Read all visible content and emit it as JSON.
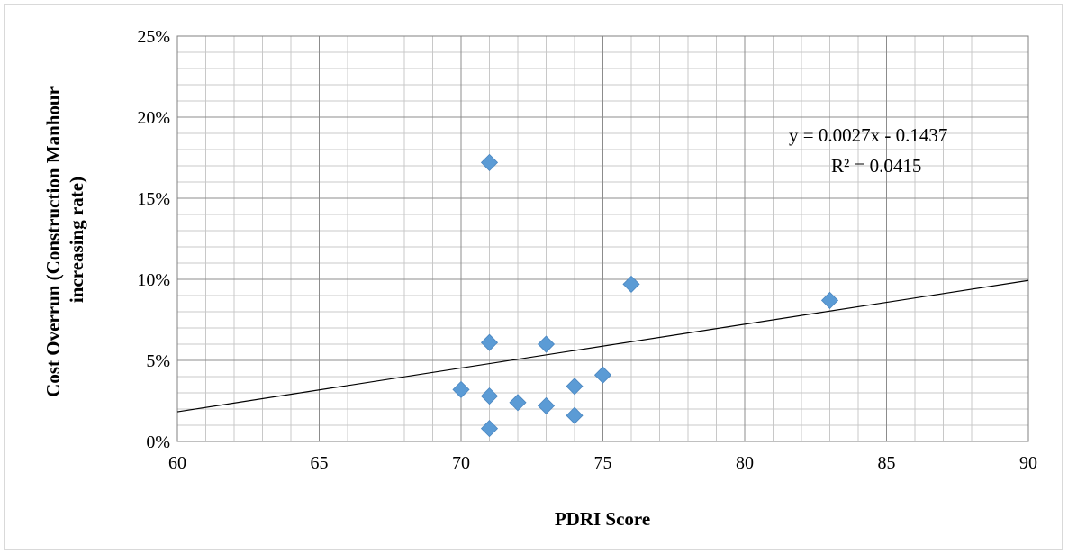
{
  "chart_data": {
    "type": "scatter",
    "title": "",
    "xlabel": "PDRI Score",
    "ylabel_lines": [
      "Cost Overrun (Construction Manhour",
      "increasing rate)"
    ],
    "xlim": [
      60,
      90
    ],
    "ylim": [
      0,
      0.25
    ],
    "x_ticks": [
      60,
      65,
      70,
      75,
      80,
      85,
      90
    ],
    "x_tick_labels": [
      "60",
      "65",
      "70",
      "75",
      "80",
      "85",
      "90"
    ],
    "y_ticks": [
      0,
      0.05,
      0.1,
      0.15,
      0.2,
      0.25
    ],
    "y_tick_labels": [
      "0%",
      "5%",
      "10%",
      "15%",
      "20%",
      "25%"
    ],
    "grid": true,
    "legend": "none",
    "marker": "diamond",
    "marker_color": "#5b9bd5",
    "series": [
      {
        "points": [
          {
            "x": 70,
            "y": 0.032
          },
          {
            "x": 71,
            "y": 0.172
          },
          {
            "x": 71,
            "y": 0.061
          },
          {
            "x": 71,
            "y": 0.028
          },
          {
            "x": 71,
            "y": 0.008
          },
          {
            "x": 72,
            "y": 0.024
          },
          {
            "x": 73,
            "y": 0.06
          },
          {
            "x": 73,
            "y": 0.022
          },
          {
            "x": 74,
            "y": 0.034
          },
          {
            "x": 74,
            "y": 0.016
          },
          {
            "x": 75,
            "y": 0.041
          },
          {
            "x": 76,
            "y": 0.097
          },
          {
            "x": 83,
            "y": 0.087
          }
        ]
      }
    ],
    "trendline": {
      "type": "linear",
      "slope": 0.0027,
      "intercept": -0.1437,
      "color": "#000000"
    },
    "annotations": {
      "equation": "y = 0.0027x - 0.1437",
      "r_squared": "R² = 0.0415"
    }
  }
}
